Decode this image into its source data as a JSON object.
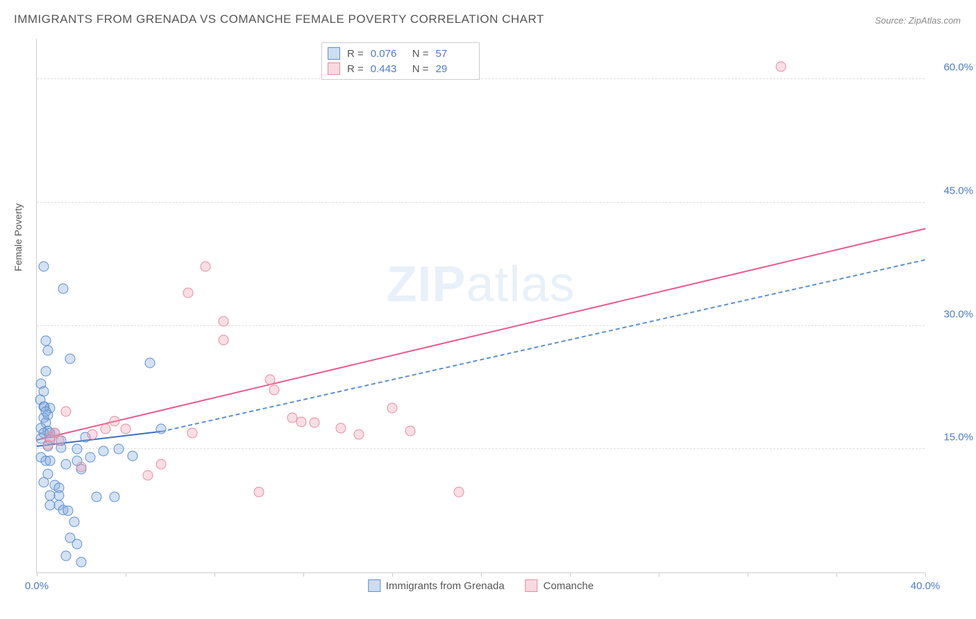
{
  "title": "IMMIGRANTS FROM GRENADA VS COMANCHE FEMALE POVERTY CORRELATION CHART",
  "source": "Source: ZipAtlas.com",
  "ylabel": "Female Poverty",
  "watermark": {
    "bold": "ZIP",
    "light": "atlas"
  },
  "chart": {
    "type": "scatter",
    "background_color": "#ffffff",
    "grid_color": "#dddddd",
    "xlim": [
      0,
      40
    ],
    "ylim": [
      0,
      65
    ],
    "xtick_positions": [
      0,
      4,
      8,
      12,
      16,
      20,
      24,
      28,
      32,
      36,
      40
    ],
    "xtick_labels": {
      "0": "0.0%",
      "40": "40.0%"
    },
    "ytick_positions": [
      15,
      30,
      45,
      60
    ],
    "ytick_labels": [
      "15.0%",
      "30.0%",
      "45.0%",
      "60.0%"
    ],
    "tick_color": "#4a7bc8",
    "tick_fontsize": 15,
    "series": [
      {
        "name": "Immigrants from Grenada",
        "color_fill": "rgba(130,170,220,0.35)",
        "color_stroke": "#5b8fd0",
        "marker_size": 15,
        "R": "0.076",
        "N": "57",
        "reg_solid": {
          "x1": 0,
          "y1": 15.5,
          "x2": 5.6,
          "y2": 17.3,
          "color": "#3a6fc0",
          "width": 2.5
        },
        "reg_dash": {
          "x1": 5.6,
          "y1": 17.3,
          "x2": 40,
          "y2": 38.2,
          "color": "#5b8fd0",
          "width": 2
        },
        "points": [
          [
            0.3,
            37.2
          ],
          [
            1.2,
            34.5
          ],
          [
            0.4,
            28.2
          ],
          [
            0.5,
            27.0
          ],
          [
            1.5,
            26.0
          ],
          [
            0.4,
            24.5
          ],
          [
            0.2,
            23.0
          ],
          [
            0.3,
            22.0
          ],
          [
            0.15,
            21.0
          ],
          [
            0.3,
            20.2
          ],
          [
            0.35,
            20.2
          ],
          [
            0.6,
            20.0
          ],
          [
            0.5,
            19.2
          ],
          [
            0.3,
            18.8
          ],
          [
            0.4,
            18.2
          ],
          [
            0.2,
            17.6
          ],
          [
            0.5,
            17.2
          ],
          [
            0.3,
            17.0
          ],
          [
            0.6,
            17.0
          ],
          [
            0.8,
            17.0
          ],
          [
            0.2,
            16.3
          ],
          [
            0.6,
            16.2
          ],
          [
            0.5,
            15.4
          ],
          [
            1.1,
            15.2
          ],
          [
            1.1,
            16.0
          ],
          [
            1.8,
            15.0
          ],
          [
            2.2,
            16.5
          ],
          [
            3.0,
            14.8
          ],
          [
            3.7,
            15.0
          ],
          [
            4.3,
            14.2
          ],
          [
            5.1,
            25.5
          ],
          [
            5.6,
            17.5
          ],
          [
            0.2,
            14.0
          ],
          [
            0.4,
            13.6
          ],
          [
            0.6,
            13.6
          ],
          [
            1.3,
            13.2
          ],
          [
            1.8,
            13.6
          ],
          [
            2.0,
            12.6
          ],
          [
            2.4,
            14.0
          ],
          [
            0.5,
            12.0
          ],
          [
            0.3,
            11.0
          ],
          [
            0.8,
            10.6
          ],
          [
            1.0,
            10.3
          ],
          [
            0.6,
            9.4
          ],
          [
            1.0,
            9.4
          ],
          [
            2.7,
            9.2
          ],
          [
            3.5,
            9.2
          ],
          [
            0.6,
            8.2
          ],
          [
            1.0,
            8.2
          ],
          [
            1.2,
            7.6
          ],
          [
            1.4,
            7.5
          ],
          [
            1.7,
            6.2
          ],
          [
            1.5,
            4.2
          ],
          [
            1.8,
            3.5
          ],
          [
            1.3,
            2.0
          ],
          [
            2.0,
            1.3
          ],
          [
            0.4,
            19.6
          ]
        ]
      },
      {
        "name": "Comanche",
        "color_fill": "rgba(240,160,180,0.35)",
        "color_stroke": "#e68aa0",
        "marker_size": 15,
        "R": "0.443",
        "N": "29",
        "reg_solid": {
          "x1": 0,
          "y1": 16.3,
          "x2": 40,
          "y2": 42.0,
          "color": "#e85a8a",
          "width": 2.5
        },
        "points": [
          [
            33.5,
            61.5
          ],
          [
            7.6,
            37.2
          ],
          [
            6.8,
            34.0
          ],
          [
            8.4,
            30.6
          ],
          [
            8.4,
            28.3
          ],
          [
            10.5,
            23.5
          ],
          [
            10.7,
            22.2
          ],
          [
            11.5,
            18.8
          ],
          [
            11.9,
            18.3
          ],
          [
            13.7,
            17.6
          ],
          [
            16.0,
            20.0
          ],
          [
            16.8,
            17.2
          ],
          [
            19.0,
            9.8
          ],
          [
            5.0,
            11.8
          ],
          [
            5.6,
            13.2
          ],
          [
            4.0,
            17.5
          ],
          [
            3.1,
            17.5
          ],
          [
            3.5,
            18.4
          ],
          [
            2.5,
            16.8
          ],
          [
            2.0,
            12.8
          ],
          [
            1.3,
            19.6
          ],
          [
            1.0,
            16.0
          ],
          [
            0.8,
            17.0
          ],
          [
            0.6,
            16.5
          ],
          [
            0.5,
            15.5
          ],
          [
            10.0,
            9.8
          ],
          [
            12.5,
            18.2
          ],
          [
            7.0,
            17.0
          ],
          [
            14.5,
            16.8
          ]
        ]
      }
    ],
    "legend_bottom": [
      {
        "swatch": "blue",
        "label": "Immigrants from Grenada"
      },
      {
        "swatch": "pink",
        "label": "Comanche"
      }
    ]
  }
}
